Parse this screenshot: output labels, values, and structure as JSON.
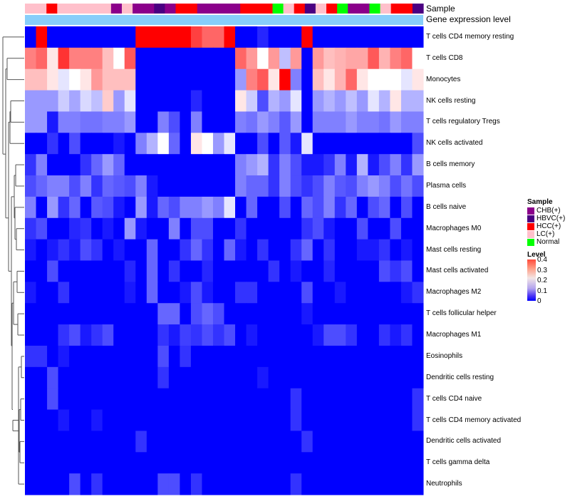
{
  "annotations": {
    "sample_label": "Sample",
    "gene_label": "Gene expression level"
  },
  "legend": {
    "sample": {
      "title": "Sample",
      "items": [
        {
          "label": "CHB(+)",
          "color": "#8b008b"
        },
        {
          "label": "HBVC(+)",
          "color": "#4b0082"
        },
        {
          "label": "HCC(+)",
          "color": "#ff0000"
        },
        {
          "label": "LC(+)",
          "color": "#ffc0cb"
        },
        {
          "label": "Normal",
          "color": "#00ff00"
        }
      ]
    },
    "level": {
      "title": "Level",
      "ticks": [
        "0.4",
        "0.3",
        "0.2",
        "0.1",
        "0"
      ]
    }
  },
  "chart_data": {
    "type": "heatmap",
    "title": "",
    "value_range": [
      0,
      0.4
    ],
    "colorscale": [
      "#0000ff",
      "#ffffff",
      "#ff0000"
    ],
    "columns": 36,
    "sample_groups": [
      "LC",
      "LC",
      "HCC",
      "LC",
      "LC",
      "LC",
      "LC",
      "LC",
      "CHB",
      "LC",
      "CHB",
      "CHB",
      "HBVC",
      "CHB",
      "HCC",
      "HCC",
      "CHB",
      "CHB",
      "CHB",
      "CHB",
      "HCC",
      "HCC",
      "HCC",
      "Normal",
      "LC",
      "HCC",
      "HBVC",
      "LC",
      "HCC",
      "Normal",
      "CHB",
      "CHB",
      "Normal",
      "LC",
      "HCC",
      "HCC",
      "HBVC"
    ],
    "rows": [
      {
        "name": "T cells CD4 memory resting",
        "values": [
          0.0,
          0.4,
          0.0,
          0.0,
          0.0,
          0.0,
          0.0,
          0.0,
          0.0,
          0.0,
          0.4,
          0.4,
          0.4,
          0.4,
          0.4,
          0.35,
          0.32,
          0.32,
          0.4,
          0.0,
          0.0,
          0.03,
          0.0,
          0.0,
          0.0,
          0.4,
          0.0,
          0.0,
          0.0,
          0.0,
          0.0,
          0.0,
          0.0,
          0.0,
          0.0,
          0.0
        ]
      },
      {
        "name": "T cells CD8",
        "values": [
          0.3,
          0.32,
          0.22,
          0.36,
          0.3,
          0.3,
          0.3,
          0.25,
          0.2,
          0.33,
          0.0,
          0.0,
          0.0,
          0.0,
          0.0,
          0.0,
          0.0,
          0.0,
          0.0,
          0.32,
          0.28,
          0.2,
          0.28,
          0.15,
          0.28,
          0.0,
          0.28,
          0.25,
          0.26,
          0.27,
          0.27,
          0.33,
          0.26,
          0.3,
          0.32,
          0.2
        ]
      },
      {
        "name": "Monocytes",
        "values": [
          0.25,
          0.25,
          0.22,
          0.18,
          0.2,
          0.22,
          0.28,
          0.25,
          0.25,
          0.25,
          0.0,
          0.0,
          0.0,
          0.0,
          0.0,
          0.0,
          0.0,
          0.0,
          0.0,
          0.12,
          0.3,
          0.33,
          0.22,
          0.4,
          0.1,
          0.0,
          0.25,
          0.22,
          0.26,
          0.32,
          0.22,
          0.2,
          0.2,
          0.2,
          0.18,
          0.22
        ]
      },
      {
        "name": "NK cells resting",
        "values": [
          0.12,
          0.12,
          0.12,
          0.16,
          0.13,
          0.17,
          0.15,
          0.24,
          0.12,
          0.18,
          0.0,
          0.0,
          0.0,
          0.0,
          0.0,
          0.03,
          0.0,
          0.0,
          0.0,
          0.22,
          0.16,
          0.06,
          0.14,
          0.12,
          0.18,
          0.0,
          0.12,
          0.14,
          0.12,
          0.15,
          0.12,
          0.18,
          0.14,
          0.22,
          0.14,
          0.14
        ]
      },
      {
        "name": "T cells regulatory  Tregs",
        "values": [
          0.12,
          0.12,
          0.02,
          0.1,
          0.1,
          0.09,
          0.09,
          0.1,
          0.1,
          0.12,
          0.0,
          0.0,
          0.1,
          0.06,
          0.0,
          0.1,
          0.0,
          0.0,
          0.0,
          0.1,
          0.09,
          0.12,
          0.1,
          0.07,
          0.12,
          0.0,
          0.1,
          0.1,
          0.1,
          0.12,
          0.1,
          0.1,
          0.09,
          0.12,
          0.1,
          0.1
        ]
      },
      {
        "name": "NK cells activated",
        "values": [
          0.0,
          0.0,
          0.04,
          0.0,
          0.06,
          0.0,
          0.0,
          0.0,
          0.02,
          0.0,
          0.1,
          0.14,
          0.2,
          0.08,
          0.0,
          0.22,
          0.2,
          0.12,
          0.18,
          0.0,
          0.0,
          0.06,
          0.0,
          0.07,
          0.02,
          0.18,
          0.0,
          0.0,
          0.0,
          0.0,
          0.0,
          0.0,
          0.0,
          0.0,
          0.0,
          0.06
        ]
      },
      {
        "name": "B cells memory",
        "values": [
          0.04,
          0.1,
          0.0,
          0.0,
          0.0,
          0.04,
          0.08,
          0.12,
          0.08,
          0.0,
          0.0,
          0.0,
          0.0,
          0.0,
          0.0,
          0.0,
          0.0,
          0.0,
          0.0,
          0.1,
          0.12,
          0.14,
          0.04,
          0.1,
          0.06,
          0.02,
          0.02,
          0.04,
          0.1,
          0.02,
          0.14,
          0.02,
          0.06,
          0.1,
          0.04,
          0.12
        ]
      },
      {
        "name": "Plasma cells",
        "values": [
          0.06,
          0.08,
          0.1,
          0.1,
          0.06,
          0.1,
          0.04,
          0.08,
          0.07,
          0.06,
          0.1,
          0.02,
          0.0,
          0.0,
          0.0,
          0.0,
          0.0,
          0.0,
          0.0,
          0.1,
          0.08,
          0.08,
          0.04,
          0.1,
          0.06,
          0.04,
          0.06,
          0.1,
          0.07,
          0.06,
          0.1,
          0.12,
          0.1,
          0.06,
          0.09,
          0.06
        ]
      },
      {
        "name": "B cells naive",
        "values": [
          0.1,
          0.0,
          0.12,
          0.04,
          0.08,
          0.0,
          0.07,
          0.06,
          0.02,
          0.0,
          0.12,
          0.02,
          0.08,
          0.06,
          0.1,
          0.1,
          0.12,
          0.1,
          0.18,
          0.0,
          0.08,
          0.0,
          0.0,
          0.06,
          0.0,
          0.08,
          0.06,
          0.1,
          0.04,
          0.08,
          0.0,
          0.06,
          0.08,
          0.0,
          0.06,
          0.0
        ]
      },
      {
        "name": "Macrophages M0",
        "values": [
          0.04,
          0.06,
          0.0,
          0.0,
          0.03,
          0.04,
          0.0,
          0.02,
          0.0,
          0.12,
          0.02,
          0.0,
          0.0,
          0.1,
          0.0,
          0.06,
          0.06,
          0.0,
          0.0,
          0.04,
          0.0,
          0.0,
          0.0,
          0.0,
          0.0,
          0.04,
          0.06,
          0.02,
          0.0,
          0.0,
          0.06,
          0.0,
          0.0,
          0.06,
          0.0,
          0.0
        ]
      },
      {
        "name": "Mast cells resting",
        "values": [
          0.02,
          0.0,
          0.02,
          0.04,
          0.02,
          0.06,
          0.04,
          0.0,
          0.02,
          0.0,
          0.0,
          0.08,
          0.0,
          0.0,
          0.04,
          0.08,
          0.04,
          0.0,
          0.08,
          0.02,
          0.0,
          0.04,
          0.0,
          0.0,
          0.04,
          0.08,
          0.0,
          0.04,
          0.0,
          0.0,
          0.02,
          0.02,
          0.04,
          0.0,
          0.02,
          0.0
        ]
      },
      {
        "name": "Mast cells activated",
        "values": [
          0.0,
          0.0,
          0.06,
          0.0,
          0.0,
          0.0,
          0.0,
          0.0,
          0.0,
          0.03,
          0.0,
          0.08,
          0.0,
          0.04,
          0.0,
          0.0,
          0.03,
          0.0,
          0.0,
          0.0,
          0.0,
          0.0,
          0.04,
          0.0,
          0.02,
          0.0,
          0.0,
          0.03,
          0.0,
          0.0,
          0.0,
          0.0,
          0.06,
          0.04,
          0.06,
          0.0
        ]
      },
      {
        "name": "Macrophages M2",
        "values": [
          0.02,
          0.0,
          0.0,
          0.04,
          0.0,
          0.0,
          0.0,
          0.0,
          0.0,
          0.02,
          0.0,
          0.08,
          0.0,
          0.0,
          0.02,
          0.06,
          0.02,
          0.0,
          0.0,
          0.04,
          0.04,
          0.0,
          0.0,
          0.0,
          0.0,
          0.06,
          0.0,
          0.0,
          0.02,
          0.0,
          0.0,
          0.0,
          0.0,
          0.0,
          0.02,
          0.04
        ]
      },
      {
        "name": "T cells follicular helper",
        "values": [
          0.0,
          0.0,
          0.0,
          0.0,
          0.0,
          0.0,
          0.0,
          0.0,
          0.0,
          0.0,
          0.0,
          0.0,
          0.08,
          0.08,
          0.0,
          0.06,
          0.08,
          0.06,
          0.0,
          0.0,
          0.0,
          0.0,
          0.0,
          0.0,
          0.0,
          0.02,
          0.0,
          0.0,
          0.0,
          0.0,
          0.0,
          0.0,
          0.0,
          0.0,
          0.0,
          0.0
        ]
      },
      {
        "name": "Macrophages M1",
        "values": [
          0.0,
          0.0,
          0.0,
          0.04,
          0.06,
          0.02,
          0.04,
          0.06,
          0.0,
          0.0,
          0.0,
          0.0,
          0.04,
          0.02,
          0.05,
          0.04,
          0.06,
          0.04,
          0.06,
          0.0,
          0.02,
          0.0,
          0.0,
          0.0,
          0.0,
          0.0,
          0.02,
          0.06,
          0.06,
          0.04,
          0.0,
          0.0,
          0.04,
          0.02,
          0.04,
          0.0
        ]
      },
      {
        "name": "Eosinophils",
        "values": [
          0.04,
          0.04,
          0.0,
          0.02,
          0.0,
          0.0,
          0.0,
          0.0,
          0.0,
          0.0,
          0.0,
          0.0,
          0.06,
          0.0,
          0.04,
          0.0,
          0.0,
          0.0,
          0.0,
          0.0,
          0.0,
          0.0,
          0.0,
          0.0,
          0.0,
          0.0,
          0.0,
          0.0,
          0.0,
          0.0,
          0.0,
          0.0,
          0.0,
          0.0,
          0.0,
          0.0
        ]
      },
      {
        "name": "Dendritic cells resting",
        "values": [
          0.0,
          0.0,
          0.06,
          0.0,
          0.0,
          0.0,
          0.0,
          0.0,
          0.0,
          0.0,
          0.0,
          0.0,
          0.04,
          0.0,
          0.0,
          0.0,
          0.0,
          0.0,
          0.0,
          0.0,
          0.0,
          0.02,
          0.0,
          0.0,
          0.0,
          0.0,
          0.0,
          0.0,
          0.0,
          0.0,
          0.0,
          0.0,
          0.0,
          0.0,
          0.0,
          0.0
        ]
      },
      {
        "name": "T cells CD4 naive",
        "values": [
          0.0,
          0.0,
          0.06,
          0.0,
          0.0,
          0.0,
          0.0,
          0.0,
          0.0,
          0.0,
          0.0,
          0.0,
          0.0,
          0.0,
          0.0,
          0.0,
          0.0,
          0.0,
          0.0,
          0.0,
          0.0,
          0.0,
          0.0,
          0.0,
          0.04,
          0.0,
          0.0,
          0.0,
          0.0,
          0.0,
          0.0,
          0.0,
          0.0,
          0.0,
          0.0,
          0.04
        ]
      },
      {
        "name": "T cells CD4 memory activated",
        "values": [
          0.0,
          0.0,
          0.0,
          0.02,
          0.0,
          0.0,
          0.02,
          0.0,
          0.0,
          0.0,
          0.0,
          0.0,
          0.0,
          0.0,
          0.0,
          0.0,
          0.0,
          0.0,
          0.0,
          0.0,
          0.0,
          0.0,
          0.0,
          0.0,
          0.04,
          0.0,
          0.0,
          0.0,
          0.0,
          0.0,
          0.0,
          0.0,
          0.0,
          0.0,
          0.0,
          0.04
        ]
      },
      {
        "name": "Dendritic cells activated",
        "values": [
          0.0,
          0.0,
          0.0,
          0.0,
          0.0,
          0.0,
          0.0,
          0.0,
          0.0,
          0.0,
          0.04,
          0.0,
          0.0,
          0.0,
          0.0,
          0.0,
          0.0,
          0.0,
          0.0,
          0.0,
          0.0,
          0.0,
          0.0,
          0.0,
          0.0,
          0.04,
          0.0,
          0.0,
          0.0,
          0.0,
          0.0,
          0.0,
          0.0,
          0.0,
          0.0,
          0.0
        ]
      },
      {
        "name": "T cells gamma delta",
        "values": [
          0.0,
          0.0,
          0.0,
          0.0,
          0.0,
          0.0,
          0.0,
          0.0,
          0.0,
          0.0,
          0.0,
          0.0,
          0.0,
          0.0,
          0.0,
          0.0,
          0.0,
          0.0,
          0.0,
          0.0,
          0.0,
          0.0,
          0.0,
          0.0,
          0.0,
          0.0,
          0.0,
          0.0,
          0.0,
          0.0,
          0.0,
          0.0,
          0.0,
          0.0,
          0.0,
          0.0
        ]
      },
      {
        "name": "Neutrophils",
        "values": [
          0.0,
          0.0,
          0.0,
          0.0,
          0.06,
          0.0,
          0.04,
          0.0,
          0.0,
          0.0,
          0.0,
          0.0,
          0.06,
          0.06,
          0.0,
          0.04,
          0.0,
          0.0,
          0.0,
          0.0,
          0.0,
          0.0,
          0.0,
          0.0,
          0.04,
          0.0,
          0.0,
          0.0,
          0.0,
          0.0,
          0.0,
          0.0,
          0.0,
          0.0,
          0.0,
          0.0
        ]
      }
    ]
  }
}
